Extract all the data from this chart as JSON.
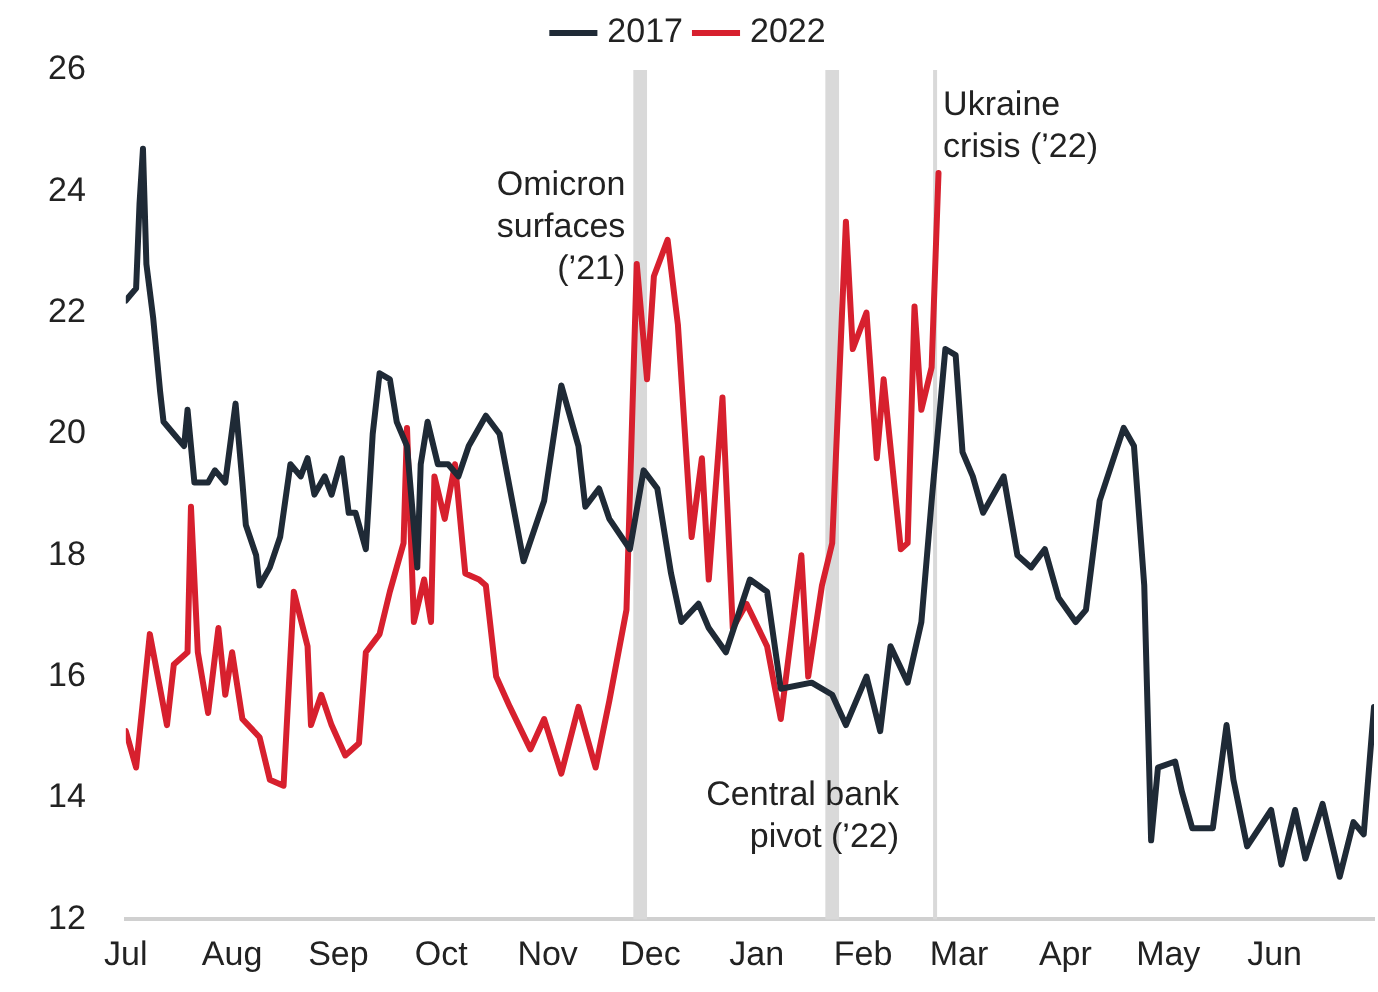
{
  "chart_data": {
    "type": "line",
    "xlim": [
      "2021-07-01",
      "2022-06-30"
    ],
    "xticks": [
      {
        "value": "2021-07-01",
        "label": "Jul"
      },
      {
        "value": "2021-08-01",
        "label": "Aug"
      },
      {
        "value": "2021-09-01",
        "label": "Sep"
      },
      {
        "value": "2021-10-01",
        "label": "Oct"
      },
      {
        "value": "2021-11-01",
        "label": "Nov"
      },
      {
        "value": "2021-12-01",
        "label": "Dec"
      },
      {
        "value": "2022-01-01",
        "label": "Jan"
      },
      {
        "value": "2022-02-01",
        "label": "Feb"
      },
      {
        "value": "2022-03-01",
        "label": "Mar"
      },
      {
        "value": "2022-04-01",
        "label": "Apr"
      },
      {
        "value": "2022-05-01",
        "label": "May"
      },
      {
        "value": "2022-06-01",
        "label": "Jun"
      }
    ],
    "ylim": [
      12,
      26
    ],
    "yticks": [
      12,
      14,
      16,
      18,
      20,
      22,
      24,
      26
    ],
    "legend": "top",
    "series": [
      {
        "name": "2017",
        "color": "#1f2a36",
        "x": [
          "2021-07-01",
          "2021-07-04",
          "2021-07-05",
          "2021-07-06",
          "2021-07-07",
          "2021-07-09",
          "2021-07-11",
          "2021-07-12",
          "2021-07-15",
          "2021-07-18",
          "2021-07-19",
          "2021-07-21",
          "2021-07-25",
          "2021-07-27",
          "2021-07-30",
          "2021-08-02",
          "2021-08-04",
          "2021-08-05",
          "2021-08-08",
          "2021-08-09",
          "2021-08-12",
          "2021-08-15",
          "2021-08-18",
          "2021-08-21",
          "2021-08-23",
          "2021-08-25",
          "2021-08-28",
          "2021-08-30",
          "2021-09-02",
          "2021-09-04",
          "2021-09-06",
          "2021-09-09",
          "2021-09-11",
          "2021-09-13",
          "2021-09-16",
          "2021-09-18",
          "2021-09-21",
          "2021-09-24",
          "2021-09-25",
          "2021-09-27",
          "2021-09-30",
          "2021-10-03",
          "2021-10-06",
          "2021-10-09",
          "2021-10-14",
          "2021-10-18",
          "2021-10-25",
          "2021-10-31",
          "2021-11-05",
          "2021-11-10",
          "2021-11-12",
          "2021-11-16",
          "2021-11-19",
          "2021-11-25",
          "2021-11-29",
          "2021-12-03",
          "2021-12-07",
          "2021-12-10",
          "2021-12-15",
          "2021-12-18",
          "2021-12-23",
          "2021-12-30",
          "2022-01-04",
          "2022-01-08",
          "2022-01-17",
          "2022-01-23",
          "2022-01-27",
          "2022-02-02",
          "2022-02-06",
          "2022-02-09",
          "2022-02-14",
          "2022-02-18",
          "2022-02-21",
          "2022-02-25",
          "2022-02-28",
          "2022-03-02",
          "2022-03-05",
          "2022-03-08",
          "2022-03-14",
          "2022-03-18",
          "2022-03-22",
          "2022-03-26",
          "2022-03-30",
          "2022-04-04",
          "2022-04-07",
          "2022-04-11",
          "2022-04-18",
          "2022-04-21",
          "2022-04-24",
          "2022-04-26",
          "2022-04-28",
          "2022-05-03",
          "2022-05-05",
          "2022-05-08",
          "2022-05-14",
          "2022-05-18",
          "2022-05-20",
          "2022-05-24",
          "2022-05-31",
          "2022-06-03",
          "2022-06-07",
          "2022-06-10",
          "2022-06-15",
          "2022-06-20",
          "2022-06-24",
          "2022-06-27",
          "2022-06-30"
        ],
        "values": [
          22.2,
          22.4,
          23.8,
          24.7,
          22.8,
          21.9,
          20.7,
          20.2,
          20.0,
          19.8,
          20.4,
          19.2,
          19.2,
          19.4,
          19.2,
          20.5,
          19.2,
          18.5,
          18.0,
          17.5,
          17.8,
          18.3,
          19.5,
          19.3,
          19.6,
          19.0,
          19.3,
          19.0,
          19.6,
          18.7,
          18.7,
          18.1,
          20.0,
          21.0,
          20.9,
          20.2,
          19.8,
          17.8,
          19.5,
          20.2,
          19.5,
          19.5,
          19.3,
          19.8,
          20.3,
          20.0,
          17.9,
          18.9,
          20.8,
          19.8,
          18.8,
          19.1,
          18.6,
          18.1,
          19.4,
          19.1,
          17.7,
          16.9,
          17.2,
          16.8,
          16.4,
          17.6,
          17.4,
          15.8,
          15.9,
          15.7,
          15.2,
          16.0,
          15.1,
          16.5,
          15.9,
          16.9,
          18.9,
          21.4,
          21.3,
          19.7,
          19.3,
          18.7,
          19.3,
          18.0,
          17.8,
          18.1,
          17.3,
          16.9,
          17.1,
          18.9,
          20.1,
          19.8,
          17.5,
          13.3,
          14.5,
          14.6,
          14.1,
          13.5,
          13.5,
          15.2,
          14.3,
          13.2,
          13.8,
          12.9,
          13.8,
          13.0,
          13.9,
          12.7,
          13.6,
          13.4,
          15.5
        ]
      },
      {
        "name": "2022",
        "color": "#d7202e",
        "x": [
          "2021-07-01",
          "2021-07-04",
          "2021-07-06",
          "2021-07-08",
          "2021-07-12",
          "2021-07-13",
          "2021-07-15",
          "2021-07-19",
          "2021-07-20",
          "2021-07-22",
          "2021-07-25",
          "2021-07-28",
          "2021-07-30",
          "2021-08-01",
          "2021-08-04",
          "2021-08-09",
          "2021-08-12",
          "2021-08-16",
          "2021-08-19",
          "2021-08-23",
          "2021-08-24",
          "2021-08-27",
          "2021-08-30",
          "2021-09-03",
          "2021-09-07",
          "2021-09-09",
          "2021-09-13",
          "2021-09-16",
          "2021-09-20",
          "2021-09-21",
          "2021-09-23",
          "2021-09-26",
          "2021-09-28",
          "2021-09-29",
          "2021-10-02",
          "2021-10-05",
          "2021-10-08",
          "2021-10-12",
          "2021-10-14",
          "2021-10-17",
          "2021-10-21",
          "2021-10-27",
          "2021-10-31",
          "2021-11-05",
          "2021-11-10",
          "2021-11-15",
          "2021-11-19",
          "2021-11-24",
          "2021-11-27",
          "2021-11-30",
          "2021-12-02",
          "2021-12-06",
          "2021-12-09",
          "2021-12-13",
          "2021-12-16",
          "2021-12-18",
          "2021-12-22",
          "2021-12-25",
          "2021-12-29",
          "2022-01-04",
          "2022-01-08",
          "2022-01-14",
          "2022-01-16",
          "2022-01-20",
          "2022-01-23",
          "2022-01-27",
          "2022-01-29",
          "2022-02-02",
          "2022-02-05",
          "2022-02-07",
          "2022-02-12",
          "2022-02-14",
          "2022-02-16",
          "2022-02-18",
          "2022-02-21",
          "2022-02-23"
        ],
        "values": [
          15.1,
          14.5,
          15.6,
          16.7,
          15.5,
          15.2,
          16.2,
          16.4,
          18.8,
          16.4,
          15.4,
          16.8,
          15.7,
          16.4,
          15.3,
          15.0,
          14.3,
          14.2,
          17.4,
          16.5,
          15.2,
          15.7,
          15.2,
          14.7,
          14.9,
          16.4,
          16.7,
          17.4,
          18.2,
          20.1,
          16.9,
          17.6,
          16.9,
          19.3,
          18.6,
          19.5,
          17.7,
          17.6,
          17.5,
          16.0,
          15.5,
          14.8,
          15.3,
          14.4,
          15.5,
          14.5,
          15.6,
          17.1,
          22.8,
          20.9,
          22.6,
          23.2,
          21.8,
          18.3,
          19.6,
          17.6,
          20.6,
          16.8,
          17.2,
          16.5,
          15.3,
          18.0,
          16.0,
          17.5,
          18.2,
          23.5,
          21.4,
          22.0,
          19.6,
          20.9,
          18.1,
          18.2,
          22.1,
          20.4,
          21.1,
          24.3
        ]
      }
    ],
    "bands": [
      {
        "axis": "x",
        "from": "2021-11-26",
        "to": "2021-11-30",
        "label": "Omicron\nsurfaces\n(’21)",
        "color": "#d9d9d9"
      },
      {
        "axis": "x",
        "from": "2022-01-21",
        "to": "2022-01-25",
        "label": "Central bank\npivot (’22)",
        "color": "#d9d9d9"
      }
    ],
    "ref_lines": [
      {
        "axis": "x",
        "value": "2022-02-22",
        "label": "Ukraine\ncrisis (’22)",
        "color": "#d9d9d9"
      }
    ]
  }
}
